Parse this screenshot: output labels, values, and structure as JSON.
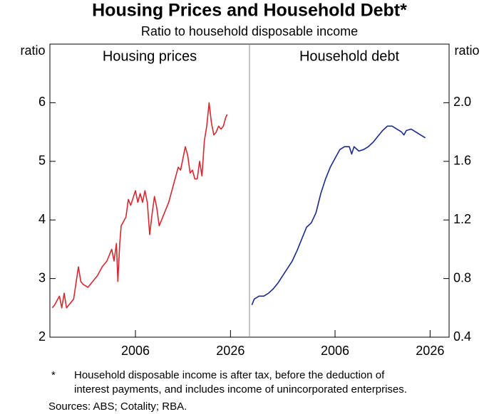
{
  "title": "Housing Prices and Household Debt*",
  "subtitle": "Ratio to household disposable income",
  "footnote": {
    "marker": "*",
    "lines": [
      "Household disposable income is after tax, before the deduction of",
      "interest payments, and includes income of unincorporated enterprises."
    ]
  },
  "sources": "Sources: ABS; Cotality; RBA.",
  "chart_data": [
    {
      "type": "line",
      "title": "Housing prices",
      "ylabel": "ratio",
      "xlim": [
        1988,
        2030
      ],
      "xticks": [
        2006,
        2026
      ],
      "ylim": [
        2,
        7
      ],
      "yticks": [
        2,
        3,
        4,
        5,
        6
      ],
      "x": [
        1988.5,
        1989,
        1990,
        1990.5,
        1991,
        1991.5,
        1992,
        1993,
        1994,
        1994.5,
        1995,
        1996,
        1997,
        1998,
        1999,
        2000,
        2001,
        2001.5,
        2002,
        2002.3,
        2002.7,
        2003,
        2004,
        2004.5,
        2005,
        2006,
        2006.5,
        2007,
        2007.5,
        2008,
        2008.5,
        2009,
        2009.5,
        2010,
        2010.5,
        2011,
        2012,
        2013,
        2014,
        2015,
        2015.5,
        2016,
        2016.5,
        2017,
        2017.5,
        2018,
        2018.5,
        2019,
        2019.5,
        2020,
        2020.5,
        2021,
        2021.5,
        2022,
        2022.5,
        2023,
        2023.5,
        2024,
        2024.5,
        2025,
        2025.3
      ],
      "series": [
        {
          "name": "Housing prices",
          "color": "#d7282f",
          "values": [
            2.5,
            2.55,
            2.7,
            2.5,
            2.75,
            2.5,
            2.55,
            2.65,
            3.2,
            2.95,
            2.9,
            2.85,
            2.95,
            3.05,
            3.2,
            3.3,
            3.5,
            3.3,
            3.6,
            2.95,
            3.6,
            3.9,
            4.05,
            4.35,
            4.25,
            4.5,
            4.3,
            4.45,
            4.3,
            4.5,
            4.3,
            3.75,
            4.1,
            4.4,
            4.2,
            3.9,
            4.1,
            4.3,
            4.6,
            4.9,
            4.85,
            5.05,
            5.25,
            5.1,
            4.8,
            4.85,
            4.7,
            4.7,
            5.0,
            4.75,
            5.35,
            5.6,
            6.0,
            5.65,
            5.45,
            5.5,
            5.6,
            5.55,
            5.6,
            5.75,
            5.8
          ]
        }
      ]
    },
    {
      "type": "line",
      "title": "Household debt",
      "ylabel": "ratio",
      "xlim": [
        1988,
        2030
      ],
      "xticks": [
        2006,
        2026
      ],
      "y2lim": [
        0.4,
        2.4
      ],
      "y2ticks": [
        {
          "value": 0.4,
          "label": "0.4"
        },
        {
          "value": 0.8,
          "label": "0.8"
        },
        {
          "value": 1.2,
          "label": "1.2"
        },
        {
          "value": 1.6,
          "label": "1.6"
        },
        {
          "value": 2,
          "label": "2.0"
        }
      ],
      "x": [
        1988.5,
        1989,
        1990,
        1991,
        1992,
        1993,
        1994,
        1995,
        1996,
        1997,
        1998,
        1999,
        2000,
        2001,
        2002,
        2003,
        2004,
        2005,
        2006,
        2007,
        2008,
        2009,
        2009.5,
        2010,
        2011,
        2012,
        2013,
        2014,
        2015,
        2016,
        2017,
        2018,
        2019,
        2020,
        2020.5,
        2021,
        2022,
        2023,
        2024,
        2025
      ],
      "series": [
        {
          "name": "Household debt",
          "color": "#1a2a8c",
          "axis": "y2",
          "values": [
            0.62,
            0.66,
            0.68,
            0.68,
            0.7,
            0.73,
            0.77,
            0.82,
            0.87,
            0.92,
            0.99,
            1.07,
            1.15,
            1.18,
            1.25,
            1.38,
            1.48,
            1.56,
            1.62,
            1.68,
            1.7,
            1.7,
            1.65,
            1.7,
            1.67,
            1.68,
            1.7,
            1.73,
            1.77,
            1.81,
            1.84,
            1.84,
            1.82,
            1.8,
            1.78,
            1.81,
            1.82,
            1.8,
            1.78,
            1.76
          ]
        }
      ]
    }
  ]
}
